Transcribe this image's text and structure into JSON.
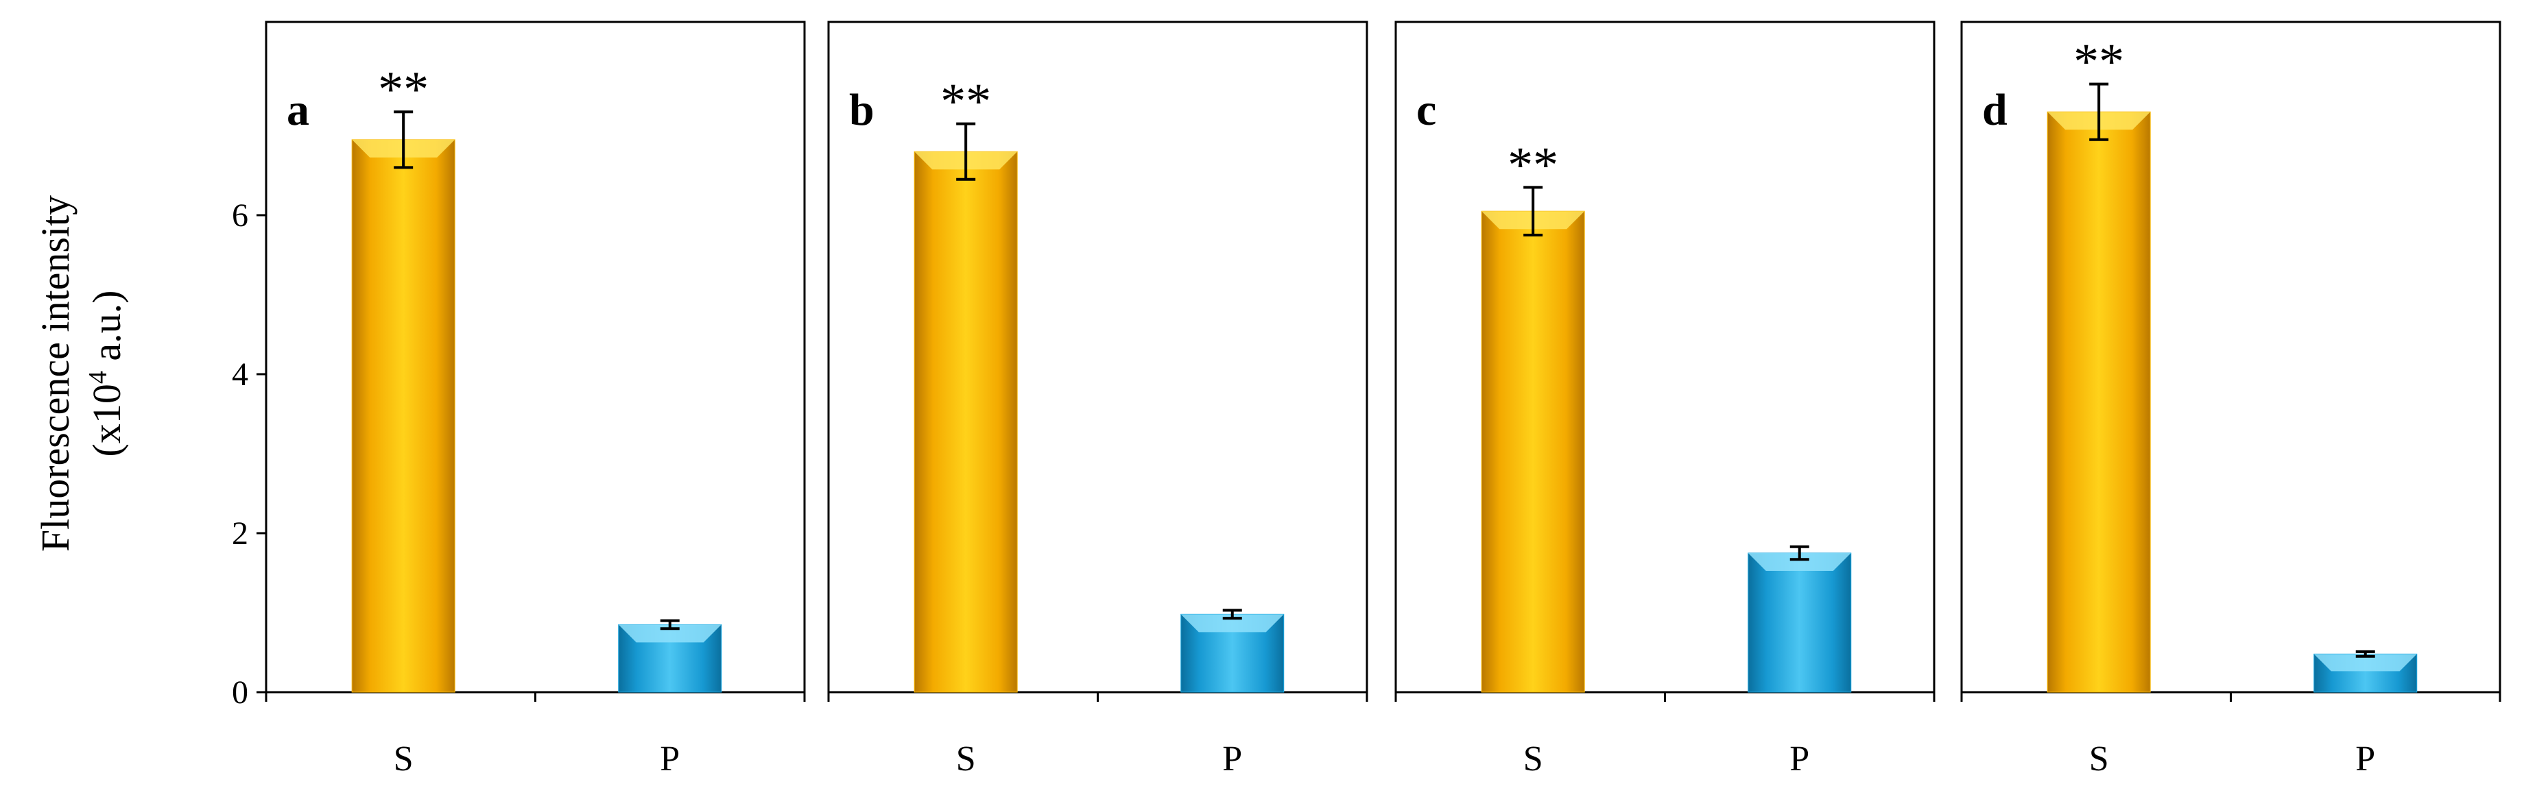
{
  "y_axis": {
    "label_line1": "Fluorescence intensity",
    "label_line2_prefix": "(x10",
    "label_line2_sup": "4",
    "label_line2_suffix": " a.u.)"
  },
  "colors": {
    "S": "#f7b500",
    "P": "#19a6df"
  },
  "chart_data": [
    {
      "type": "bar",
      "panel": "a",
      "categories": [
        "S",
        "P"
      ],
      "values": [
        6.95,
        0.85
      ],
      "errors": [
        0.35,
        0.05
      ],
      "significance": [
        "**",
        ""
      ],
      "yticks": [
        0,
        2,
        4,
        6
      ],
      "ylim": [
        0,
        8.4
      ]
    },
    {
      "type": "bar",
      "panel": "b",
      "categories": [
        "S",
        "P"
      ],
      "values": [
        6.8,
        0.98
      ],
      "errors": [
        0.35,
        0.05
      ],
      "significance": [
        "**",
        ""
      ],
      "ylim": [
        0,
        8.4
      ]
    },
    {
      "type": "bar",
      "panel": "c",
      "categories": [
        "S",
        "P"
      ],
      "values": [
        6.05,
        1.75
      ],
      "errors": [
        0.3,
        0.08
      ],
      "significance": [
        "**",
        ""
      ],
      "ylim": [
        0,
        8.4
      ]
    },
    {
      "type": "bar",
      "panel": "d",
      "categories": [
        "S",
        "P"
      ],
      "values": [
        7.3,
        0.48
      ],
      "errors": [
        0.35,
        0.03
      ],
      "significance": [
        "**",
        ""
      ],
      "ylim": [
        0,
        8.4
      ]
    }
  ]
}
